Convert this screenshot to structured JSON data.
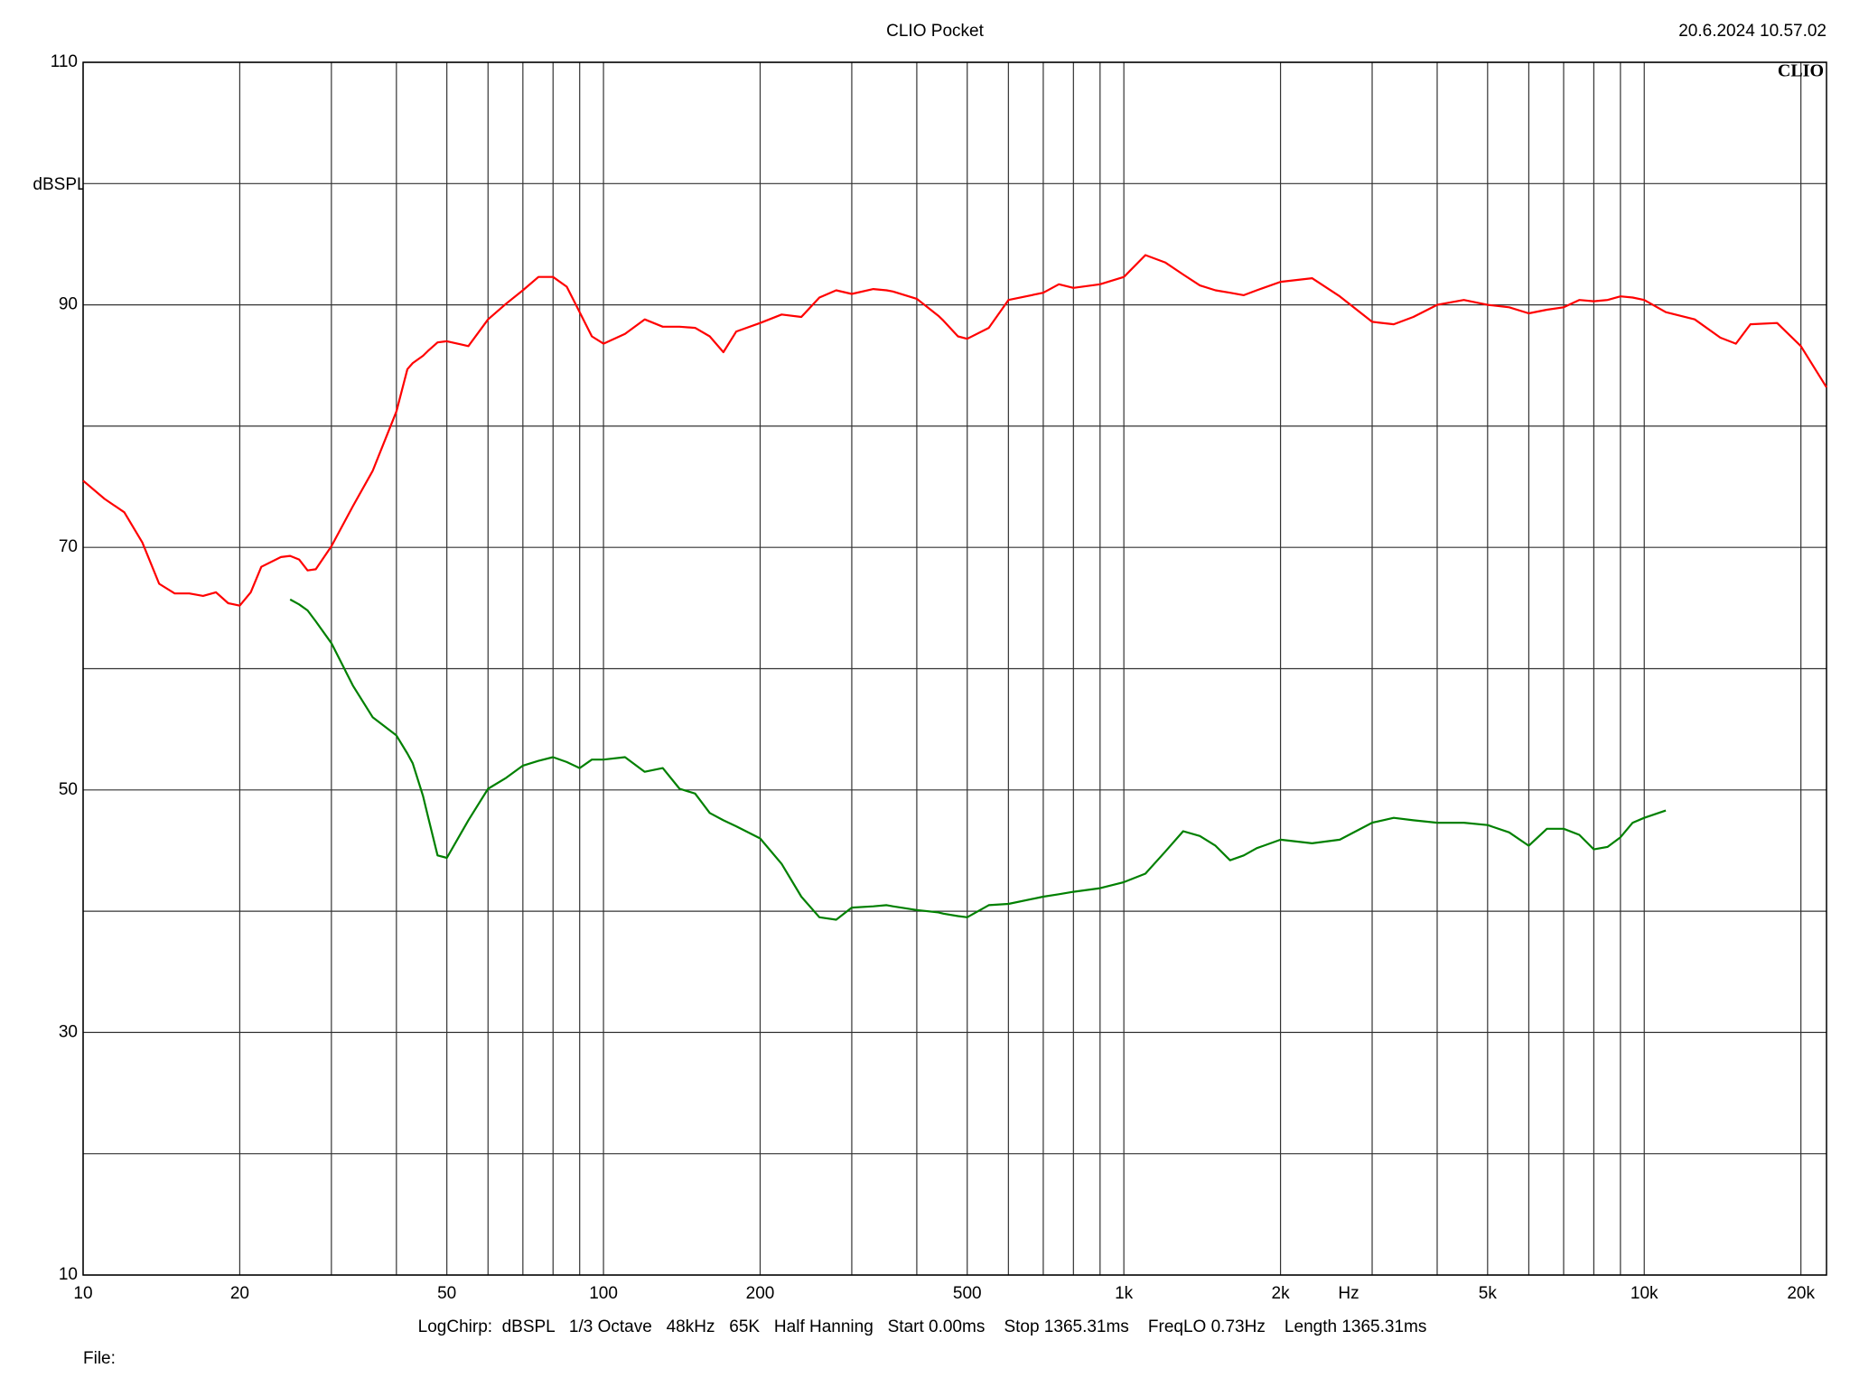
{
  "chart_data": {
    "type": "line",
    "title": "CLIO Pocket",
    "timestamp": "20.6.2024 10.57.02",
    "logo": "CLIO",
    "y_label": "dBSPL",
    "x_label": "Hz",
    "footer": "LogChirp:  dBSPL   1/3 Octave   48kHz   65K   Half Hanning   Start 0.00ms    Stop 1365.31ms    FreqLO 0.73Hz    Length 1365.31ms",
    "file_label": "File:",
    "x_scale": "log",
    "grid": true,
    "xlim": [
      10,
      22400
    ],
    "ylim": [
      10,
      110
    ],
    "xticks": [
      10,
      20,
      50,
      100,
      200,
      500,
      {
        "value": 1000,
        "label": "1k"
      },
      {
        "value": 2000,
        "label": "2k"
      },
      {
        "value": 5000,
        "label": "5k"
      },
      {
        "value": 10000,
        "label": "10k"
      },
      {
        "value": 20000,
        "label": "20k"
      }
    ],
    "x_minor_ticks": [
      30,
      40,
      60,
      70,
      80,
      90,
      300,
      400,
      600,
      700,
      800,
      900,
      3000,
      4000,
      6000,
      7000,
      8000,
      9000
    ],
    "yticks": [
      10,
      30,
      50,
      70,
      90,
      110
    ],
    "y_minor_ticks": [
      20,
      40,
      60,
      80,
      100
    ],
    "x": [
      10,
      11,
      12,
      13,
      14,
      15,
      16,
      17,
      18,
      19,
      20,
      21,
      22,
      24,
      25,
      26,
      27,
      28,
      30,
      33,
      36,
      40,
      42,
      43,
      45,
      46,
      48,
      50,
      55,
      60,
      65,
      70,
      75,
      80,
      85,
      90,
      95,
      100,
      110,
      120,
      130,
      140,
      150,
      160,
      170,
      180,
      200,
      220,
      240,
      260,
      280,
      300,
      330,
      350,
      360,
      400,
      440,
      450,
      480,
      500,
      550,
      600,
      700,
      750,
      800,
      900,
      1000,
      1100,
      1200,
      1300,
      1400,
      1500,
      1600,
      1700,
      1800,
      2000,
      2300,
      2600,
      3000,
      3300,
      3600,
      4000,
      4500,
      5000,
      5500,
      6000,
      6500,
      7000,
      7500,
      8000,
      8500,
      9000,
      9500,
      10000,
      11000,
      12500,
      14000,
      15000,
      16000,
      18000,
      20000,
      22400
    ],
    "series": [
      {
        "color": "#ff0000",
        "values": [
          75.5,
          74.0,
          72.9,
          70.4,
          67.0,
          66.2,
          66.2,
          66.0,
          66.3,
          65.4,
          65.2,
          66.3,
          68.4,
          69.2,
          69.3,
          69.0,
          68.1,
          68.2,
          70.1,
          73.4,
          76.3,
          81.2,
          84.7,
          85.2,
          85.8,
          86.2,
          86.9,
          87.0,
          86.6,
          88.8,
          90.1,
          91.2,
          92.3,
          92.3,
          91.5,
          89.4,
          87.4,
          86.8,
          87.6,
          88.8,
          88.2,
          88.2,
          88.1,
          87.4,
          86.1,
          87.8,
          88.5,
          89.2,
          89.0,
          90.6,
          91.2,
          90.9,
          91.3,
          91.2,
          91.1,
          90.5,
          89.1,
          88.7,
          87.4,
          87.2,
          88.1,
          90.4,
          91.0,
          91.7,
          91.4,
          91.7,
          92.3,
          94.1,
          93.5,
          92.5,
          91.6,
          91.2,
          91.0,
          90.8,
          91.2,
          91.9,
          92.2,
          90.7,
          88.6,
          88.4,
          89.0,
          90.0,
          90.4,
          90.0,
          89.8,
          89.3,
          89.6,
          89.8,
          90.4,
          90.3,
          90.4,
          90.7,
          90.6,
          90.4,
          89.4,
          88.8,
          87.3,
          86.8,
          88.4,
          88.5,
          86.6,
          83.2
        ]
      },
      {
        "color": "#008000",
        "values": [
          null,
          null,
          null,
          null,
          null,
          null,
          null,
          null,
          null,
          null,
          null,
          null,
          null,
          null,
          65.7,
          65.3,
          64.8,
          63.9,
          62.1,
          58.6,
          56.0,
          54.5,
          53.0,
          52.2,
          49.5,
          47.8,
          44.6,
          44.4,
          47.5,
          50.1,
          51.0,
          52.0,
          52.4,
          52.7,
          52.3,
          51.8,
          52.5,
          52.5,
          52.7,
          51.5,
          51.8,
          50.1,
          49.7,
          48.1,
          47.5,
          47.0,
          46.0,
          43.9,
          41.2,
          39.5,
          39.3,
          40.3,
          40.4,
          40.5,
          40.4,
          40.1,
          39.9,
          39.8,
          39.6,
          39.5,
          40.5,
          40.6,
          41.2,
          41.4,
          41.6,
          41.9,
          42.4,
          43.1,
          44.9,
          46.6,
          46.2,
          45.4,
          44.2,
          44.6,
          45.2,
          45.9,
          45.6,
          45.9,
          47.3,
          47.7,
          47.5,
          47.3,
          47.3,
          47.1,
          46.5,
          45.4,
          46.8,
          46.8,
          46.3,
          45.1,
          45.3,
          46.1,
          47.3,
          47.7,
          48.3,
          null,
          null,
          null,
          null,
          null,
          null,
          null
        ]
      }
    ]
  }
}
